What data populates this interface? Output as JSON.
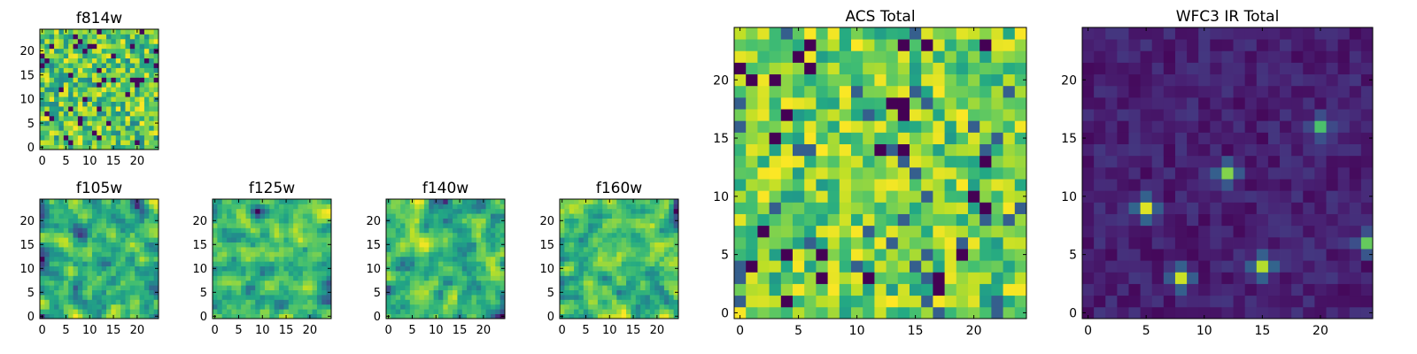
{
  "chart_data": [
    {
      "type": "heatmap",
      "title": "f814w",
      "grid_size": 25,
      "xlim": [
        0,
        25
      ],
      "ylim": [
        0,
        25
      ],
      "xticks": [
        0,
        5,
        10,
        15,
        20
      ],
      "yticks": [
        0,
        5,
        10,
        15,
        20
      ],
      "colormap": "viridis",
      "pattern": "uniform-noise",
      "seed": 11
    },
    {
      "type": "heatmap",
      "title": "f105w",
      "grid_size": 25,
      "xlim": [
        0,
        25
      ],
      "ylim": [
        0,
        25
      ],
      "xticks": [
        0,
        5,
        10,
        15,
        20
      ],
      "yticks": [
        0,
        5,
        10,
        15,
        20
      ],
      "colormap": "viridis",
      "pattern": "smoothed-noise",
      "seed": 23
    },
    {
      "type": "heatmap",
      "title": "f125w",
      "grid_size": 25,
      "xlim": [
        0,
        25
      ],
      "ylim": [
        0,
        25
      ],
      "xticks": [
        0,
        5,
        10,
        15,
        20
      ],
      "yticks": [
        0,
        5,
        10,
        15,
        20
      ],
      "colormap": "viridis",
      "pattern": "smoothed-noise",
      "seed": 37
    },
    {
      "type": "heatmap",
      "title": "f140w",
      "grid_size": 25,
      "xlim": [
        0,
        25
      ],
      "ylim": [
        0,
        25
      ],
      "xticks": [
        0,
        5,
        10,
        15,
        20
      ],
      "yticks": [
        0,
        5,
        10,
        15,
        20
      ],
      "colormap": "viridis",
      "pattern": "smoothed-noise",
      "seed": 41
    },
    {
      "type": "heatmap",
      "title": "f160w",
      "grid_size": 25,
      "xlim": [
        0,
        25
      ],
      "ylim": [
        0,
        25
      ],
      "xticks": [
        0,
        5,
        10,
        15,
        20
      ],
      "yticks": [
        0,
        5,
        10,
        15,
        20
      ],
      "colormap": "viridis",
      "pattern": "smoothed-noise",
      "seed": 53
    },
    {
      "type": "heatmap",
      "title": "ACS Total",
      "grid_size": 25,
      "xlim": [
        0,
        25
      ],
      "ylim": [
        0,
        25
      ],
      "xticks": [
        0,
        5,
        10,
        15,
        20
      ],
      "yticks": [
        0,
        5,
        10,
        15,
        20
      ],
      "colormap": "viridis",
      "pattern": "acs-noise",
      "seed": 67
    },
    {
      "type": "heatmap",
      "title": "WFC3 IR Total",
      "grid_size": 25,
      "xlim": [
        0,
        25
      ],
      "ylim": [
        0,
        25
      ],
      "xticks": [
        0,
        5,
        10,
        15,
        20
      ],
      "yticks": [
        0,
        5,
        10,
        15,
        20
      ],
      "colormap": "viridis",
      "pattern": "sources",
      "seed": 79,
      "sources": [
        {
          "x": 5,
          "y": 9,
          "peak": 1.0
        },
        {
          "x": 12,
          "y": 12,
          "peak": 0.95
        },
        {
          "x": 20,
          "y": 16,
          "peak": 0.75
        },
        {
          "x": 8,
          "y": 3,
          "peak": 1.0
        },
        {
          "x": 15,
          "y": 4,
          "peak": 1.0
        },
        {
          "x": 24,
          "y": 6,
          "peak": 0.85
        }
      ]
    }
  ]
}
